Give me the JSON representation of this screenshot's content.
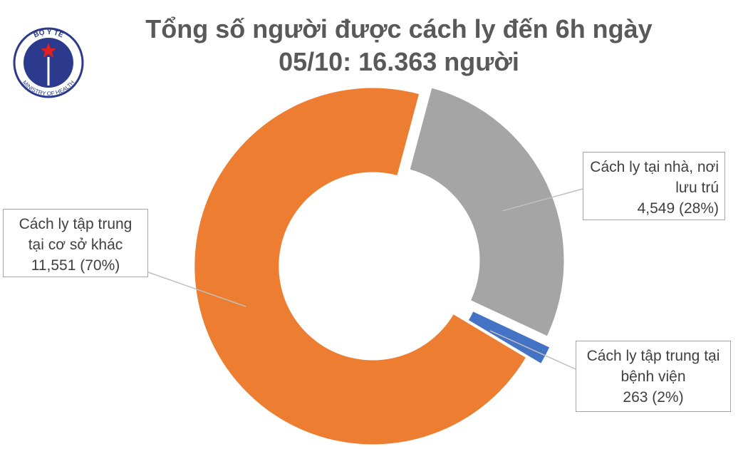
{
  "logo": {
    "top": "BỘ Y TẾ",
    "bottom": "MINISTRY OF HEALTH"
  },
  "chart_data": {
    "type": "donut",
    "title": "Tổng số người được cách ly đến 6h ngày 05/10: 16.363 người",
    "categories": [
      "Cách ly tại nhà, nơi lưu trú",
      "Cách ly tập trung tại bệnh viện",
      "Cách ly tập trung tại cơ sở khác"
    ],
    "values": [
      4549,
      263,
      11551
    ],
    "value_labels": [
      "4,549 (28%)",
      "263 (2%)",
      "11,551 (70%)"
    ],
    "colors": [
      "#a5a5a5",
      "#4472c4",
      "#ed7d31"
    ]
  }
}
